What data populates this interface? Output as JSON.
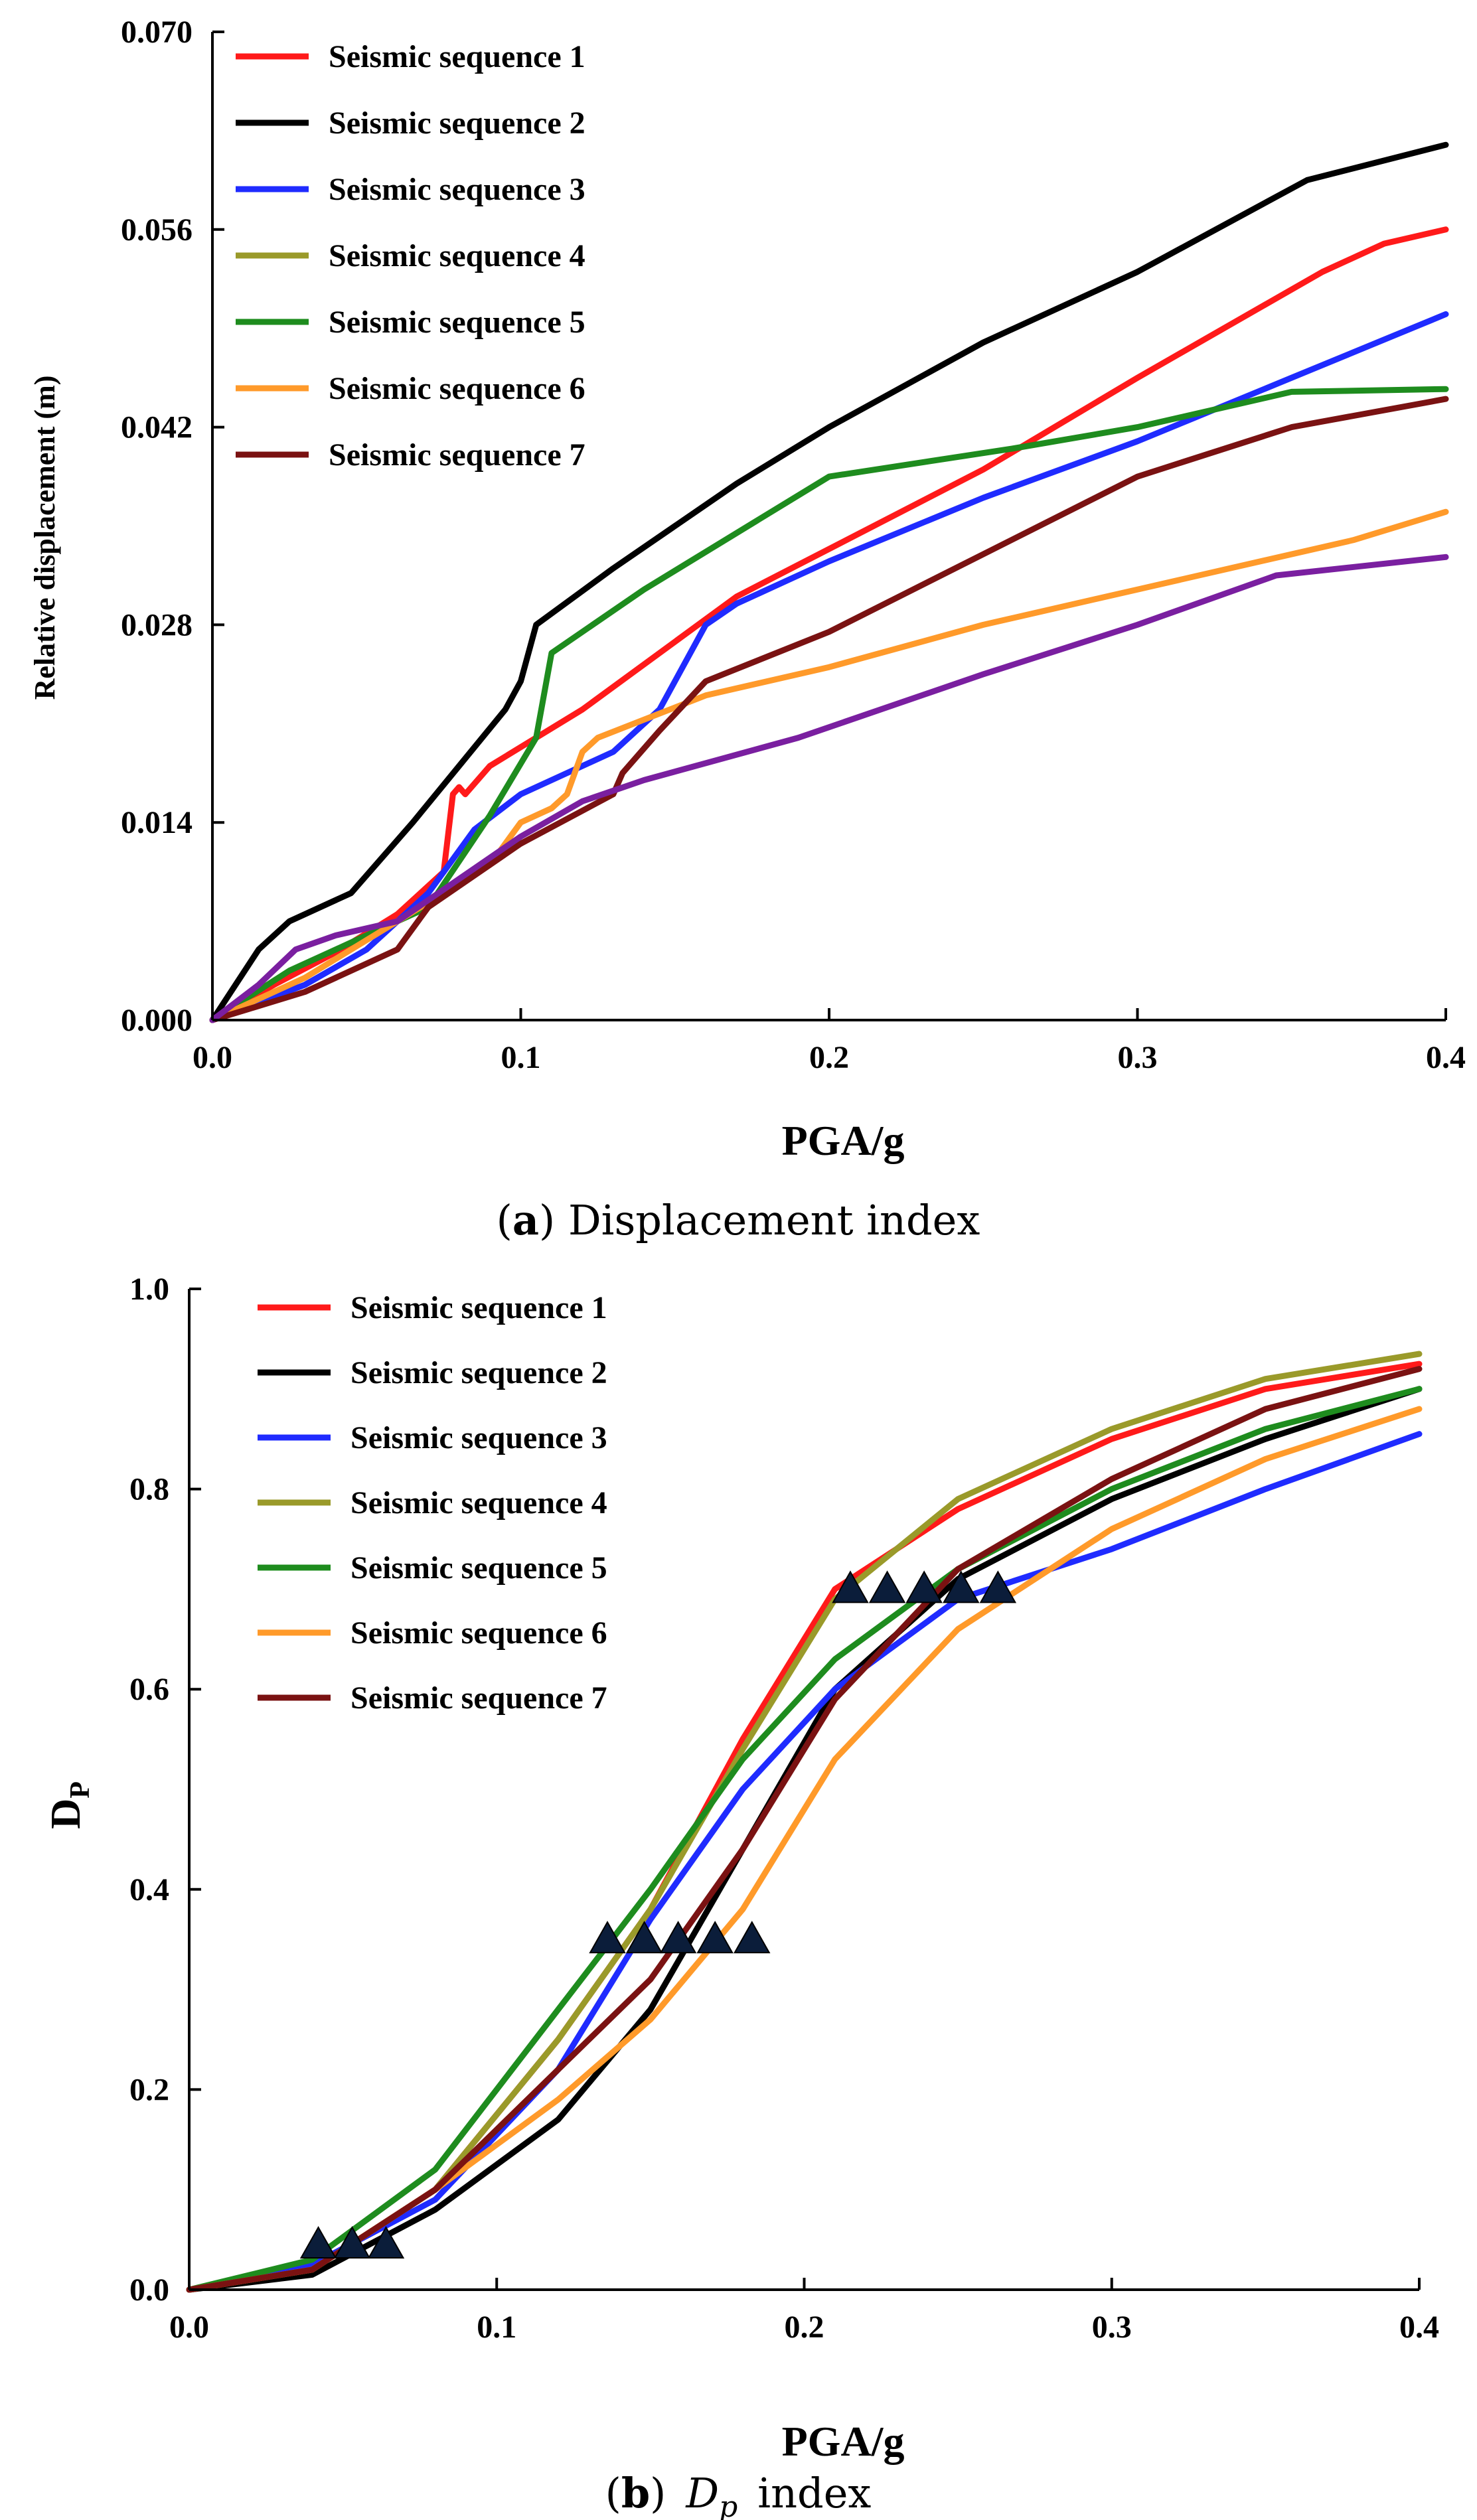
{
  "colors": {
    "s1": "#ff1a1a",
    "s2": "#000000",
    "s3": "#1f2bff",
    "s4": "#9a9a2a",
    "s5": "#1e8c1e",
    "s6": "#ff9a2a",
    "s7": "#7a1212",
    "extra": "#7a1fa0"
  },
  "chart_data": [
    {
      "type": "line",
      "caption_letter": "a",
      "caption_rest": " Displacement index",
      "xlabel": "PGA/g",
      "ylabel": "Relative displacement  (m)",
      "xlim": [
        0,
        0.4
      ],
      "ylim": [
        0,
        0.07
      ],
      "xticks": [
        0.0,
        0.1,
        0.2,
        0.3,
        0.4
      ],
      "xtick_labels": [
        "0.0",
        "0.1",
        "0.2",
        "0.3",
        "0.4"
      ],
      "yticks": [
        0.0,
        0.014,
        0.028,
        0.042,
        0.056,
        0.07
      ],
      "ytick_labels": [
        "0.000",
        "0.014",
        "0.028",
        "0.042",
        "0.056",
        "0.070"
      ],
      "legend_position": "top-left",
      "series": [
        {
          "name": "Seismic sequence 1",
          "color": "s1",
          "points": [
            [
              0,
              0
            ],
            [
              0.02,
              0.0025
            ],
            [
              0.04,
              0.0048
            ],
            [
              0.06,
              0.0075
            ],
            [
              0.075,
              0.0105
            ],
            [
              0.078,
              0.016
            ],
            [
              0.08,
              0.0165
            ],
            [
              0.082,
              0.016
            ],
            [
              0.09,
              0.018
            ],
            [
              0.12,
              0.022
            ],
            [
              0.17,
              0.03
            ],
            [
              0.25,
              0.039
            ],
            [
              0.3,
              0.0455
            ],
            [
              0.36,
              0.053
            ],
            [
              0.38,
              0.055
            ],
            [
              0.4,
              0.056
            ]
          ]
        },
        {
          "name": "Seismic sequence 2",
          "color": "s2",
          "points": [
            [
              0,
              0
            ],
            [
              0.015,
              0.005
            ],
            [
              0.025,
              0.007
            ],
            [
              0.045,
              0.009
            ],
            [
              0.065,
              0.014
            ],
            [
              0.08,
              0.018
            ],
            [
              0.095,
              0.022
            ],
            [
              0.1,
              0.024
            ],
            [
              0.105,
              0.028
            ],
            [
              0.13,
              0.032
            ],
            [
              0.17,
              0.038
            ],
            [
              0.2,
              0.042
            ],
            [
              0.25,
              0.048
            ],
            [
              0.3,
              0.053
            ],
            [
              0.355,
              0.0595
            ],
            [
              0.4,
              0.062
            ]
          ]
        },
        {
          "name": "Seismic sequence 3",
          "color": "s3",
          "points": [
            [
              0,
              0
            ],
            [
              0.03,
              0.0025
            ],
            [
              0.05,
              0.005
            ],
            [
              0.07,
              0.009
            ],
            [
              0.085,
              0.0135
            ],
            [
              0.1,
              0.016
            ],
            [
              0.13,
              0.019
            ],
            [
              0.145,
              0.022
            ],
            [
              0.16,
              0.028
            ],
            [
              0.17,
              0.0295
            ],
            [
              0.2,
              0.0325
            ],
            [
              0.25,
              0.037
            ],
            [
              0.3,
              0.041
            ],
            [
              0.35,
              0.0455
            ],
            [
              0.4,
              0.05
            ]
          ]
        },
        {
          "name": "Seismic sequence 4",
          "color": "s4",
          "points": []
        },
        {
          "name": "Seismic sequence 5",
          "color": "s5",
          "points": [
            [
              0,
              0
            ],
            [
              0.025,
              0.0035
            ],
            [
              0.05,
              0.006
            ],
            [
              0.07,
              0.008
            ],
            [
              0.09,
              0.0145
            ],
            [
              0.105,
              0.02
            ],
            [
              0.11,
              0.026
            ],
            [
              0.14,
              0.0305
            ],
            [
              0.17,
              0.0345
            ],
            [
              0.2,
              0.0385
            ],
            [
              0.26,
              0.0405
            ],
            [
              0.3,
              0.042
            ],
            [
              0.35,
              0.0445
            ],
            [
              0.4,
              0.0447
            ]
          ]
        },
        {
          "name": "Seismic sequence 6",
          "color": "s6",
          "points": [
            [
              0,
              0
            ],
            [
              0.03,
              0.003
            ],
            [
              0.06,
              0.007
            ],
            [
              0.09,
              0.011
            ],
            [
              0.1,
              0.014
            ],
            [
              0.11,
              0.015
            ],
            [
              0.115,
              0.016
            ],
            [
              0.12,
              0.019
            ],
            [
              0.125,
              0.02
            ],
            [
              0.16,
              0.023
            ],
            [
              0.2,
              0.025
            ],
            [
              0.25,
              0.028
            ],
            [
              0.3,
              0.0305
            ],
            [
              0.37,
              0.034
            ],
            [
              0.4,
              0.036
            ]
          ]
        },
        {
          "name": "Seismic sequence 7",
          "color": "s7",
          "points": [
            [
              0,
              0
            ],
            [
              0.03,
              0.002
            ],
            [
              0.06,
              0.005
            ],
            [
              0.07,
              0.008
            ],
            [
              0.1,
              0.0125
            ],
            [
              0.13,
              0.016
            ],
            [
              0.133,
              0.0175
            ],
            [
              0.145,
              0.0205
            ],
            [
              0.16,
              0.024
            ],
            [
              0.2,
              0.0275
            ],
            [
              0.25,
              0.033
            ],
            [
              0.3,
              0.0385
            ],
            [
              0.35,
              0.042
            ],
            [
              0.4,
              0.044
            ]
          ]
        },
        {
          "name": "",
          "color": "extra",
          "points": [
            [
              0,
              0
            ],
            [
              0.015,
              0.0025
            ],
            [
              0.027,
              0.005
            ],
            [
              0.04,
              0.006
            ],
            [
              0.06,
              0.007
            ],
            [
              0.08,
              0.01
            ],
            [
              0.1,
              0.013
            ],
            [
              0.12,
              0.0155
            ],
            [
              0.14,
              0.017
            ],
            [
              0.19,
              0.02
            ],
            [
              0.25,
              0.0245
            ],
            [
              0.3,
              0.028
            ],
            [
              0.345,
              0.0315
            ],
            [
              0.4,
              0.0328
            ]
          ]
        }
      ]
    },
    {
      "type": "line",
      "caption_letter": "b",
      "caption_symbol": "D",
      "caption_subscript": "p",
      "caption_rest": "index",
      "xlabel": "PGA/g",
      "ylabel_main": "D",
      "ylabel_sub": "P",
      "xlim": [
        0,
        0.4
      ],
      "ylim": [
        0,
        1.0
      ],
      "xticks": [
        0.0,
        0.1,
        0.2,
        0.3,
        0.4
      ],
      "xtick_labels": [
        "0.0",
        "0.1",
        "0.2",
        "0.3",
        "0.4"
      ],
      "yticks": [
        0.0,
        0.2,
        0.4,
        0.6,
        0.8,
        1.0
      ],
      "ytick_labels": [
        "0.0",
        "0.2",
        "0.4",
        "0.6",
        "0.8",
        "1.0"
      ],
      "legend_position": "top-left",
      "series": [
        {
          "name": "Seismic sequence 1",
          "color": "s1",
          "points": [
            [
              0,
              0
            ],
            [
              0.04,
              0.02
            ],
            [
              0.08,
              0.1
            ],
            [
              0.12,
              0.25
            ],
            [
              0.15,
              0.38
            ],
            [
              0.18,
              0.55
            ],
            [
              0.21,
              0.7
            ],
            [
              0.25,
              0.78
            ],
            [
              0.3,
              0.85
            ],
            [
              0.35,
              0.9
            ],
            [
              0.4,
              0.925
            ]
          ]
        },
        {
          "name": "Seismic sequence 2",
          "color": "s2",
          "points": [
            [
              0,
              0
            ],
            [
              0.04,
              0.015
            ],
            [
              0.08,
              0.08
            ],
            [
              0.12,
              0.17
            ],
            [
              0.15,
              0.28
            ],
            [
              0.18,
              0.44
            ],
            [
              0.21,
              0.6
            ],
            [
              0.25,
              0.71
            ],
            [
              0.3,
              0.79
            ],
            [
              0.35,
              0.85
            ],
            [
              0.4,
              0.9
            ]
          ]
        },
        {
          "name": "Seismic sequence 3",
          "color": "s3",
          "points": [
            [
              0,
              0
            ],
            [
              0.04,
              0.025
            ],
            [
              0.08,
              0.09
            ],
            [
              0.12,
              0.22
            ],
            [
              0.15,
              0.37
            ],
            [
              0.18,
              0.5
            ],
            [
              0.21,
              0.6
            ],
            [
              0.25,
              0.69
            ],
            [
              0.3,
              0.74
            ],
            [
              0.35,
              0.8
            ],
            [
              0.4,
              0.855
            ]
          ]
        },
        {
          "name": "Seismic sequence 4",
          "color": "s4",
          "points": [
            [
              0,
              0
            ],
            [
              0.04,
              0.02
            ],
            [
              0.08,
              0.1
            ],
            [
              0.12,
              0.25
            ],
            [
              0.15,
              0.38
            ],
            [
              0.18,
              0.54
            ],
            [
              0.21,
              0.69
            ],
            [
              0.25,
              0.79
            ],
            [
              0.3,
              0.86
            ],
            [
              0.35,
              0.91
            ],
            [
              0.4,
              0.935
            ]
          ]
        },
        {
          "name": "Seismic sequence 5",
          "color": "s5",
          "points": [
            [
              0,
              0
            ],
            [
              0.04,
              0.03
            ],
            [
              0.08,
              0.12
            ],
            [
              0.12,
              0.28
            ],
            [
              0.15,
              0.4
            ],
            [
              0.18,
              0.53
            ],
            [
              0.21,
              0.63
            ],
            [
              0.25,
              0.72
            ],
            [
              0.3,
              0.8
            ],
            [
              0.35,
              0.86
            ],
            [
              0.4,
              0.9
            ]
          ]
        },
        {
          "name": "Seismic sequence 6",
          "color": "s6",
          "points": [
            [
              0,
              0
            ],
            [
              0.04,
              0.02
            ],
            [
              0.08,
              0.1
            ],
            [
              0.12,
              0.19
            ],
            [
              0.15,
              0.27
            ],
            [
              0.18,
              0.38
            ],
            [
              0.21,
              0.53
            ],
            [
              0.25,
              0.66
            ],
            [
              0.3,
              0.76
            ],
            [
              0.35,
              0.83
            ],
            [
              0.4,
              0.88
            ]
          ]
        },
        {
          "name": "Seismic sequence 7",
          "color": "s7",
          "points": [
            [
              0,
              0
            ],
            [
              0.04,
              0.02
            ],
            [
              0.08,
              0.1
            ],
            [
              0.12,
              0.22
            ],
            [
              0.15,
              0.31
            ],
            [
              0.18,
              0.44
            ],
            [
              0.21,
              0.59
            ],
            [
              0.25,
              0.72
            ],
            [
              0.3,
              0.81
            ],
            [
              0.35,
              0.88
            ],
            [
              0.4,
              0.92
            ]
          ]
        }
      ],
      "markers": [
        {
          "x": 0.042,
          "y": 0.055
        },
        {
          "x": 0.053,
          "y": 0.055
        },
        {
          "x": 0.064,
          "y": 0.055
        },
        {
          "x": 0.136,
          "y": 0.36
        },
        {
          "x": 0.148,
          "y": 0.36
        },
        {
          "x": 0.159,
          "y": 0.36
        },
        {
          "x": 0.171,
          "y": 0.36
        },
        {
          "x": 0.183,
          "y": 0.36
        },
        {
          "x": 0.215,
          "y": 0.71
        },
        {
          "x": 0.227,
          "y": 0.71
        },
        {
          "x": 0.239,
          "y": 0.71
        },
        {
          "x": 0.251,
          "y": 0.71
        },
        {
          "x": 0.263,
          "y": 0.71
        }
      ]
    }
  ]
}
